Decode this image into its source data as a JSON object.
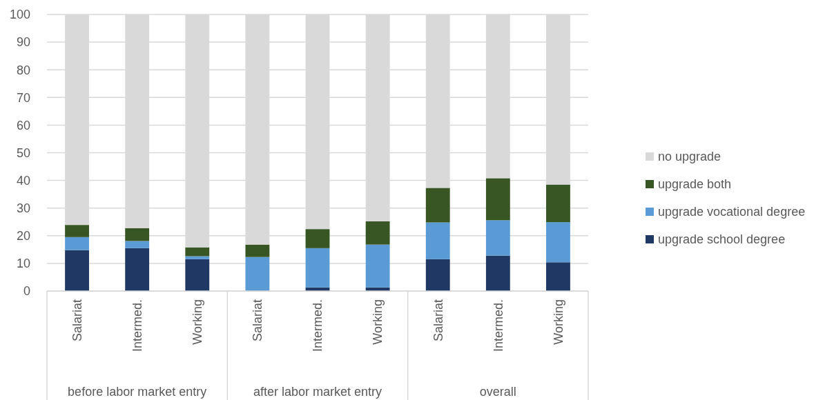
{
  "chart_data": {
    "type": "bar",
    "stacked": true,
    "categories": [
      "Salariat",
      "Intermed.",
      "Working",
      "Salariat",
      "Intermed.",
      "Working",
      "Salariat",
      "Intermed.",
      "Working"
    ],
    "series": [
      {
        "name": "upgrade school degree",
        "color": "#203864",
        "values": [
          14.8,
          15.5,
          11.5,
          0,
          1.3,
          1.3,
          11.5,
          12.8,
          10.4
        ]
      },
      {
        "name": "upgrade vocational degree",
        "color": "#5b9bd5",
        "values": [
          4.7,
          2.6,
          1.1,
          12.3,
          14.2,
          15.5,
          13.3,
          12.8,
          14.5
        ]
      },
      {
        "name": "upgrade both",
        "color": "#375623",
        "values": [
          4.4,
          4.6,
          3.2,
          4.5,
          6.9,
          8.4,
          12.5,
          15.2,
          13.6
        ]
      },
      {
        "name": "no upgrade",
        "color": "#d9d9d9",
        "values": [
          76.1,
          77.3,
          84.2,
          83.2,
          77.6,
          74.8,
          62.7,
          59.2,
          61.5
        ]
      }
    ],
    "annotations": [
      "before labor market entry",
      "after labor market entry",
      "overall"
    ],
    "ylim": [
      0,
      100
    ],
    "yticks": [
      0,
      10,
      20,
      30,
      40,
      50,
      60,
      70,
      80,
      90,
      100
    ],
    "grid": "y",
    "legend": "right"
  }
}
